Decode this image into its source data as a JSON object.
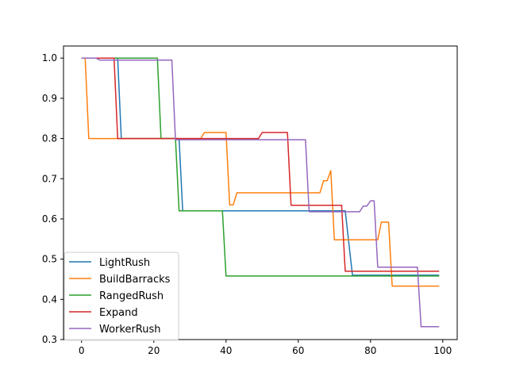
{
  "chart_data": {
    "type": "line",
    "title": "",
    "xlabel": "",
    "ylabel": "",
    "xlim": [
      -5,
      104
    ],
    "ylim": [
      0.3,
      1.03
    ],
    "xticks": [
      0,
      20,
      40,
      60,
      80,
      100
    ],
    "yticks": [
      0.3,
      0.4,
      0.5,
      0.6,
      0.7,
      0.8,
      0.9,
      1.0
    ],
    "xtick_labels": [
      "0",
      "20",
      "40",
      "60",
      "80",
      "100"
    ],
    "ytick_labels": [
      "0.3",
      "0.4",
      "0.5",
      "0.6",
      "0.7",
      "0.8",
      "0.9",
      "1.0"
    ],
    "grid": false,
    "legend": {
      "placement": "lower-left"
    },
    "series": [
      {
        "name": "LightRush",
        "color": "#1f77b4",
        "points": [
          [
            0,
            1.0
          ],
          [
            10,
            1.0
          ],
          [
            11,
            0.8
          ],
          [
            27,
            0.8
          ],
          [
            28,
            0.62
          ],
          [
            73,
            0.62
          ],
          [
            75,
            0.46
          ],
          [
            99,
            0.46
          ]
        ]
      },
      {
        "name": "BuildBarracks",
        "color": "#ff7f0e",
        "points": [
          [
            0,
            1.0
          ],
          [
            1,
            1.0
          ],
          [
            2,
            0.8
          ],
          [
            33,
            0.8
          ],
          [
            34,
            0.815
          ],
          [
            40,
            0.815
          ],
          [
            41,
            0.635
          ],
          [
            42,
            0.635
          ],
          [
            43,
            0.665
          ],
          [
            66,
            0.665
          ],
          [
            67,
            0.695
          ],
          [
            68,
            0.695
          ],
          [
            69,
            0.72
          ],
          [
            70,
            0.548
          ],
          [
            82,
            0.548
          ],
          [
            83,
            0.592
          ],
          [
            85,
            0.592
          ],
          [
            86,
            0.433
          ],
          [
            99,
            0.433
          ]
        ]
      },
      {
        "name": "RangedRush",
        "color": "#2ca02c",
        "points": [
          [
            0,
            1.0
          ],
          [
            21,
            1.0
          ],
          [
            22,
            0.8
          ],
          [
            26,
            0.8
          ],
          [
            27,
            0.62
          ],
          [
            39,
            0.62
          ],
          [
            40,
            0.458
          ],
          [
            99,
            0.458
          ]
        ]
      },
      {
        "name": "Expand",
        "color": "#d62728",
        "points": [
          [
            0,
            1.0
          ],
          [
            9,
            1.0
          ],
          [
            10,
            0.8
          ],
          [
            49,
            0.8
          ],
          [
            50,
            0.815
          ],
          [
            57,
            0.815
          ],
          [
            58,
            0.634
          ],
          [
            72,
            0.634
          ],
          [
            73,
            0.47
          ],
          [
            99,
            0.47
          ]
        ]
      },
      {
        "name": "WorkerRush",
        "color": "#9467bd",
        "points": [
          [
            0,
            1.0
          ],
          [
            4,
            1.0
          ],
          [
            5,
            0.995
          ],
          [
            25,
            0.995
          ],
          [
            26,
            0.797
          ],
          [
            61,
            0.797
          ],
          [
            62,
            0.797
          ],
          [
            63,
            0.618
          ],
          [
            76,
            0.618
          ],
          [
            77,
            0.618
          ],
          [
            78,
            0.632
          ],
          [
            79,
            0.632
          ],
          [
            80,
            0.645
          ],
          [
            81,
            0.645
          ],
          [
            82,
            0.48
          ],
          [
            92,
            0.48
          ],
          [
            93,
            0.48
          ],
          [
            94,
            0.332
          ],
          [
            99,
            0.332
          ]
        ]
      }
    ]
  }
}
